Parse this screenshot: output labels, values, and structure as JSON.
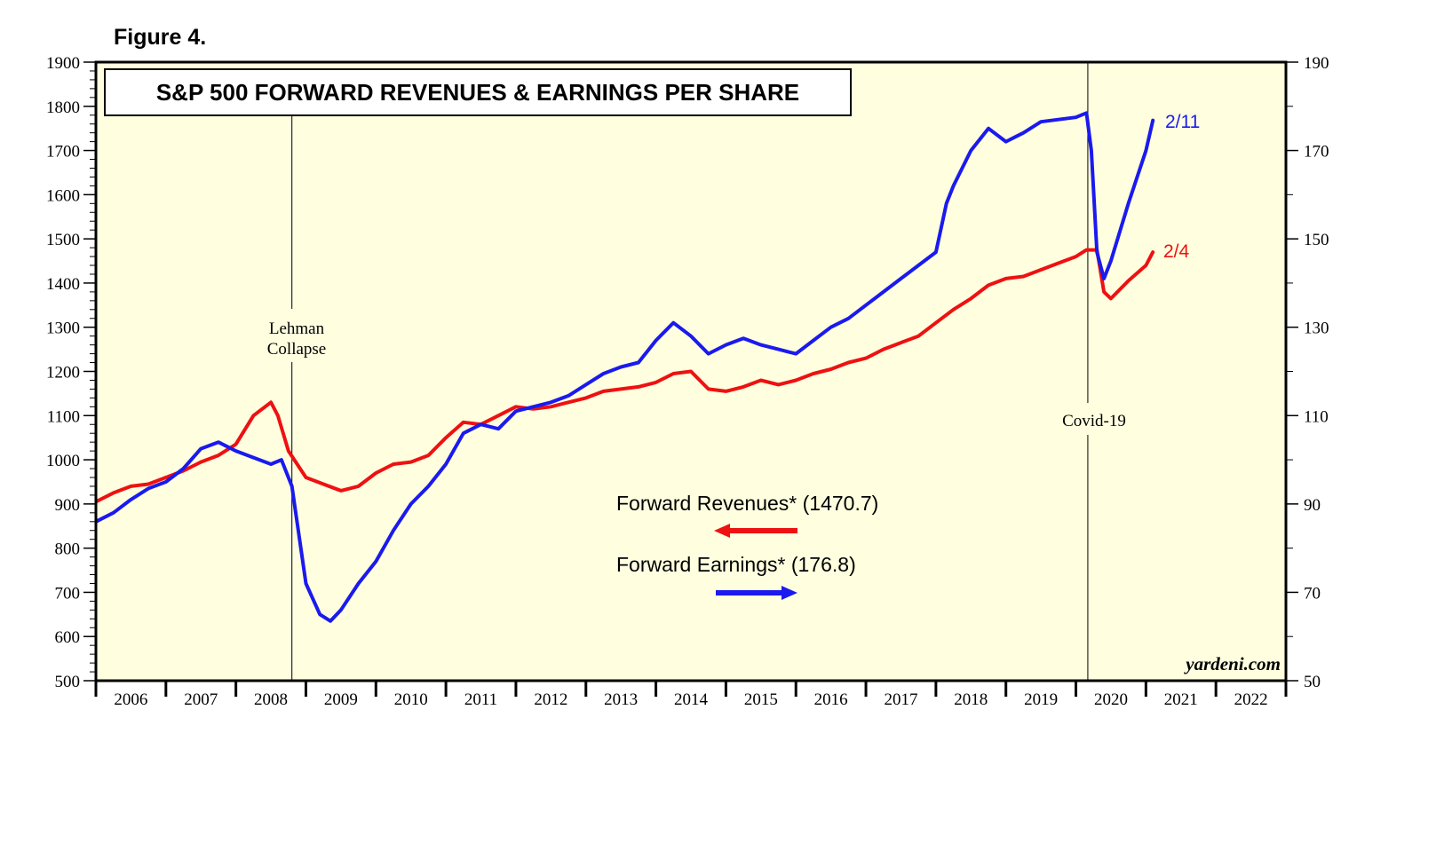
{
  "figure_label": "Figure 4.",
  "colors": {
    "revenues": "#ee1111",
    "earnings": "#1a1aee",
    "plot_bg": "#ffffe0",
    "axis": "#000000"
  },
  "chart_data": {
    "type": "line",
    "title": "S&P 500 FORWARD REVENUES & EARNINGS PER SHARE",
    "x_tick_labels": [
      "2006",
      "2007",
      "2008",
      "2009",
      "2010",
      "2011",
      "2012",
      "2013",
      "2014",
      "2015",
      "2016",
      "2017",
      "2018",
      "2019",
      "2020",
      "2021",
      "2022"
    ],
    "xlim": [
      2006.0,
      2023.0
    ],
    "left_axis": {
      "ylim": [
        500,
        1900
      ],
      "tick_labels": [
        "500",
        "600",
        "700",
        "800",
        "900",
        "1000",
        "1100",
        "1200",
        "1300",
        "1400",
        "1500",
        "1600",
        "1700",
        "1800",
        "1900"
      ]
    },
    "right_axis": {
      "ylim": [
        50,
        190
      ],
      "tick_labels": [
        "50",
        "70",
        "90",
        "110",
        "130",
        "150",
        "170",
        "190"
      ]
    },
    "annotations": [
      {
        "id": "lehman",
        "x": 2008.8,
        "text_lines": [
          "Lehman",
          "Collapse"
        ]
      },
      {
        "id": "covid",
        "x": 2020.17,
        "text": "Covid-19"
      }
    ],
    "end_labels": {
      "revenues": "2/4",
      "earnings": "2/11"
    },
    "watermark": "yardeni.com",
    "legend": {
      "position": "center-right",
      "revenues_label": "Forward Revenues* (1470.7)",
      "earnings_label": "Forward Earnings* (176.8)"
    },
    "series": [
      {
        "name": "Forward Revenues",
        "axis": "left",
        "x": [
          2006.0,
          2006.25,
          2006.5,
          2006.75,
          2007.0,
          2007.25,
          2007.5,
          2007.75,
          2008.0,
          2008.25,
          2008.5,
          2008.6,
          2008.75,
          2009.0,
          2009.25,
          2009.5,
          2009.75,
          2010.0,
          2010.25,
          2010.5,
          2010.75,
          2011.0,
          2011.25,
          2011.5,
          2011.75,
          2012.0,
          2012.25,
          2012.5,
          2012.75,
          2013.0,
          2013.25,
          2013.5,
          2013.75,
          2014.0,
          2014.25,
          2014.5,
          2014.75,
          2015.0,
          2015.25,
          2015.5,
          2015.75,
          2016.0,
          2016.25,
          2016.5,
          2016.75,
          2017.0,
          2017.25,
          2017.5,
          2017.75,
          2018.0,
          2018.25,
          2018.5,
          2018.75,
          2019.0,
          2019.25,
          2019.5,
          2019.75,
          2020.0,
          2020.15,
          2020.3,
          2020.4,
          2020.5,
          2020.75,
          2021.0,
          2021.1
        ],
        "y": [
          905,
          925,
          940,
          945,
          960,
          975,
          995,
          1010,
          1035,
          1100,
          1130,
          1100,
          1020,
          960,
          945,
          930,
          940,
          970,
          990,
          995,
          1010,
          1050,
          1085,
          1080,
          1100,
          1120,
          1115,
          1120,
          1130,
          1140,
          1155,
          1160,
          1165,
          1175,
          1195,
          1200,
          1160,
          1155,
          1165,
          1180,
          1170,
          1180,
          1195,
          1205,
          1220,
          1230,
          1250,
          1265,
          1280,
          1310,
          1340,
          1365,
          1395,
          1410,
          1415,
          1430,
          1445,
          1460,
          1475,
          1475,
          1380,
          1365,
          1405,
          1440,
          1470
        ]
      },
      {
        "name": "Forward Earnings",
        "axis": "right",
        "x": [
          2006.0,
          2006.25,
          2006.5,
          2006.75,
          2007.0,
          2007.25,
          2007.5,
          2007.75,
          2008.0,
          2008.25,
          2008.5,
          2008.65,
          2008.8,
          2009.0,
          2009.2,
          2009.35,
          2009.5,
          2009.75,
          2010.0,
          2010.25,
          2010.5,
          2010.75,
          2011.0,
          2011.25,
          2011.5,
          2011.75,
          2012.0,
          2012.25,
          2012.5,
          2012.75,
          2013.0,
          2013.25,
          2013.5,
          2013.75,
          2014.0,
          2014.25,
          2014.5,
          2014.75,
          2015.0,
          2015.25,
          2015.5,
          2015.75,
          2016.0,
          2016.25,
          2016.5,
          2016.75,
          2017.0,
          2017.25,
          2017.5,
          2017.75,
          2018.0,
          2018.15,
          2018.25,
          2018.5,
          2018.75,
          2019.0,
          2019.25,
          2019.5,
          2019.75,
          2020.0,
          2020.15,
          2020.22,
          2020.3,
          2020.4,
          2020.5,
          2020.75,
          2021.0,
          2021.1
        ],
        "y": [
          86,
          88,
          91,
          93.5,
          95,
          98,
          102.5,
          104,
          102,
          100.5,
          99,
          100,
          94,
          72,
          65,
          63.5,
          66,
          72,
          77,
          84,
          90,
          94,
          99,
          106,
          108,
          107,
          111,
          112,
          113,
          114.5,
          117,
          119.5,
          121,
          122,
          127,
          131,
          128,
          124,
          126,
          127.5,
          126,
          125,
          124,
          127,
          130,
          132,
          135,
          138,
          141,
          144,
          147,
          158,
          162,
          170,
          175,
          172,
          174,
          176.5,
          177,
          177.5,
          178.5,
          170,
          147,
          141,
          145,
          158,
          170,
          176.8
        ]
      }
    ]
  }
}
